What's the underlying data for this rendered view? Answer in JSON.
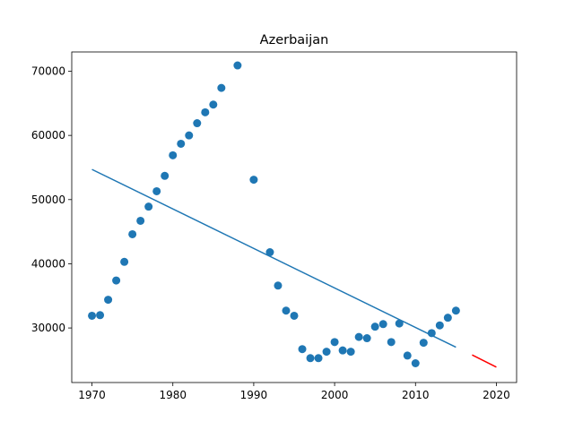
{
  "chart_data": {
    "type": "scatter",
    "title": "Azerbaijan",
    "xlabel": "",
    "ylabel": "",
    "xlim": [
      1967.5,
      2022.5
    ],
    "ylim": [
      21500,
      73000
    ],
    "x_ticks": [
      1970,
      1980,
      1990,
      2000,
      2010,
      2020
    ],
    "y_ticks": [
      30000,
      40000,
      50000,
      60000,
      70000
    ],
    "grid": false,
    "colors": {
      "points": "#1f77b4",
      "fit": "#1f77b4",
      "forecast": "#ff0000"
    },
    "points": [
      [
        1970,
        31900
      ],
      [
        1971,
        32000
      ],
      [
        1972,
        34400
      ],
      [
        1973,
        37400
      ],
      [
        1974,
        40300
      ],
      [
        1975,
        44600
      ],
      [
        1976,
        46700
      ],
      [
        1977,
        48900
      ],
      [
        1978,
        51300
      ],
      [
        1979,
        53700
      ],
      [
        1980,
        56900
      ],
      [
        1981,
        58700
      ],
      [
        1982,
        60000
      ],
      [
        1983,
        61900
      ],
      [
        1984,
        63600
      ],
      [
        1985,
        64800
      ],
      [
        1986,
        67400
      ],
      [
        1988,
        70900
      ],
      [
        1990,
        53100
      ],
      [
        1992,
        41800
      ],
      [
        1993,
        36600
      ],
      [
        1994,
        32700
      ],
      [
        1995,
        31900
      ],
      [
        1996,
        26700
      ],
      [
        1997,
        25300
      ],
      [
        1998,
        25300
      ],
      [
        1999,
        26300
      ],
      [
        2000,
        27800
      ],
      [
        2001,
        26500
      ],
      [
        2002,
        26300
      ],
      [
        2003,
        28600
      ],
      [
        2004,
        28400
      ],
      [
        2005,
        30200
      ],
      [
        2006,
        30600
      ],
      [
        2007,
        27800
      ],
      [
        2008,
        30700
      ],
      [
        2009,
        25700
      ],
      [
        2010,
        24500
      ],
      [
        2011,
        27700
      ],
      [
        2012,
        29200
      ],
      [
        2013,
        30400
      ],
      [
        2014,
        31600
      ],
      [
        2015,
        32700
      ]
    ],
    "fit_line": [
      [
        1970,
        54700
      ],
      [
        2015,
        27000
      ]
    ],
    "forecast_line": [
      [
        2017,
        25800
      ],
      [
        2020,
        23900
      ]
    ]
  }
}
